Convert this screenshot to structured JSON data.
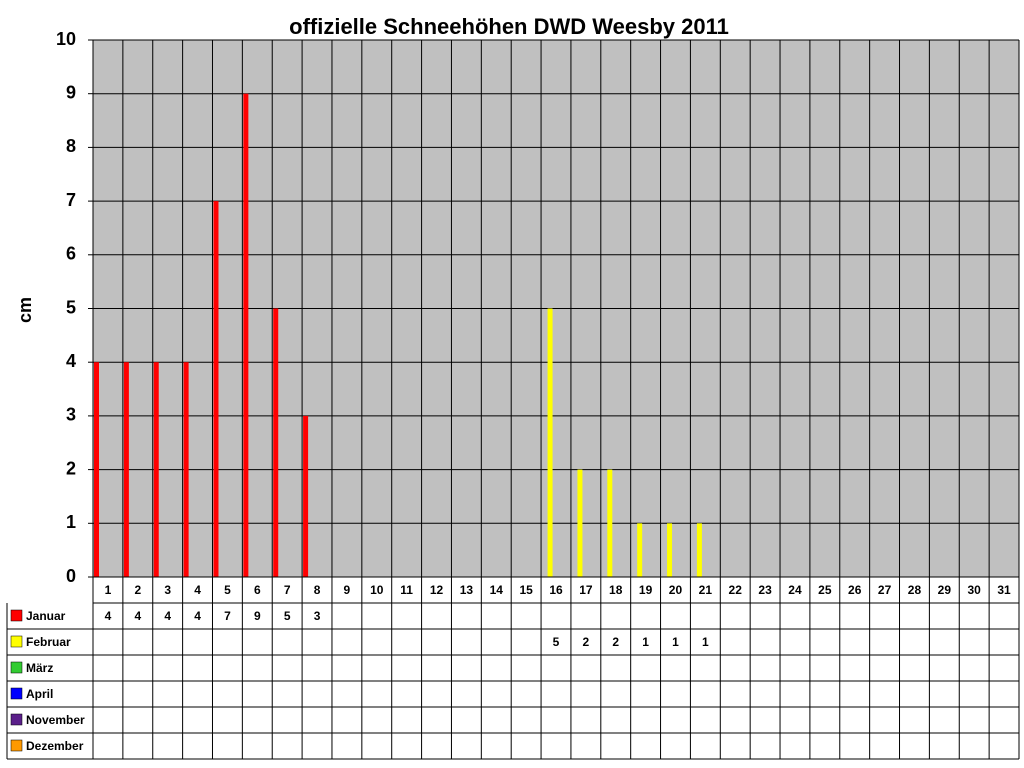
{
  "chart_data": {
    "type": "bar",
    "title": "offizielle Schneehöhen DWD Weesby 2011",
    "y_label": "cm",
    "categories": [
      "1",
      "2",
      "3",
      "4",
      "5",
      "6",
      "7",
      "8",
      "9",
      "10",
      "11",
      "12",
      "13",
      "14",
      "15",
      "16",
      "17",
      "18",
      "19",
      "20",
      "21",
      "22",
      "23",
      "24",
      "25",
      "26",
      "27",
      "28",
      "29",
      "30",
      "31"
    ],
    "series": [
      {
        "name": "Januar",
        "color": "#ff0000",
        "values": [
          4,
          4,
          4,
          4,
          7,
          9,
          5,
          3,
          null,
          null,
          null,
          null,
          null,
          null,
          null,
          null,
          null,
          null,
          null,
          null,
          null,
          null,
          null,
          null,
          null,
          null,
          null,
          null,
          null,
          null,
          null
        ]
      },
      {
        "name": "Februar",
        "color": "#ffff00",
        "values": [
          null,
          null,
          null,
          null,
          null,
          null,
          null,
          null,
          null,
          null,
          null,
          null,
          null,
          null,
          null,
          5,
          2,
          2,
          1,
          1,
          1,
          null,
          null,
          null,
          null,
          null,
          null,
          null,
          null,
          null,
          null
        ]
      },
      {
        "name": "März",
        "color": "#33cc33",
        "values": [
          null,
          null,
          null,
          null,
          null,
          null,
          null,
          null,
          null,
          null,
          null,
          null,
          null,
          null,
          null,
          null,
          null,
          null,
          null,
          null,
          null,
          null,
          null,
          null,
          null,
          null,
          null,
          null,
          null,
          null,
          null
        ]
      },
      {
        "name": "April",
        "color": "#0000ff",
        "values": [
          null,
          null,
          null,
          null,
          null,
          null,
          null,
          null,
          null,
          null,
          null,
          null,
          null,
          null,
          null,
          null,
          null,
          null,
          null,
          null,
          null,
          null,
          null,
          null,
          null,
          null,
          null,
          null,
          null,
          null,
          null
        ]
      },
      {
        "name": "November",
        "color": "#5b1f8a",
        "values": [
          null,
          null,
          null,
          null,
          null,
          null,
          null,
          null,
          null,
          null,
          null,
          null,
          null,
          null,
          null,
          null,
          null,
          null,
          null,
          null,
          null,
          null,
          null,
          null,
          null,
          null,
          null,
          null,
          null,
          null,
          null
        ]
      },
      {
        "name": "Dezember",
        "color": "#ff9900",
        "values": [
          null,
          null,
          null,
          null,
          null,
          null,
          null,
          null,
          null,
          null,
          null,
          null,
          null,
          null,
          null,
          null,
          null,
          null,
          null,
          null,
          null,
          null,
          null,
          null,
          null,
          null,
          null,
          null,
          null,
          null,
          null
        ]
      }
    ],
    "ylim": [
      0,
      10
    ],
    "yticks": [
      0,
      1,
      2,
      3,
      4,
      5,
      6,
      7,
      8,
      9,
      10
    ],
    "grid": true,
    "plot_background": "#c0c0c0"
  }
}
